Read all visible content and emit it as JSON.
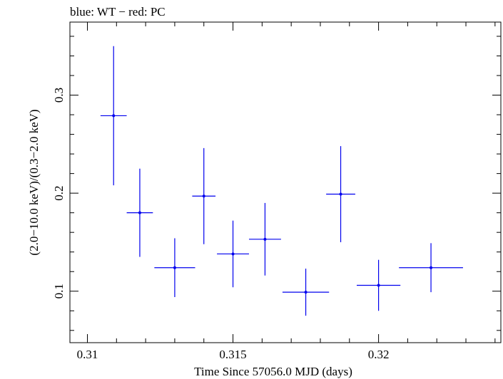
{
  "chart_data": {
    "type": "scatter",
    "title": "blue: WT − red: PC",
    "xlabel": "Time Since 57056.0 MJD (days)",
    "ylabel": "(2.0−10.0 keV)/(0.3−2.0 keV)",
    "xlim": [
      0.3094,
      0.3242
    ],
    "ylim": [
      0.0475,
      0.3745
    ],
    "x_ticks": [
      0.31,
      0.315,
      0.32
    ],
    "x_tick_labels": [
      "0.31",
      "0.315",
      "0.32"
    ],
    "y_ticks": [
      0.1,
      0.2,
      0.3
    ],
    "y_tick_labels": [
      "0.1",
      "0.2",
      "0.3"
    ],
    "grid": false,
    "series": [
      {
        "color": "#0000ee",
        "points": [
          {
            "x": 0.3109,
            "y": 0.279,
            "xerr": 0.00045,
            "yerr_low": 0.071,
            "yerr_high": 0.071
          },
          {
            "x": 0.3118,
            "y": 0.18,
            "xerr": 0.00045,
            "yerr_low": 0.045,
            "yerr_high": 0.045
          },
          {
            "x": 0.313,
            "y": 0.124,
            "xerr": 0.0007,
            "yerr_low": 0.03,
            "yerr_high": 0.03
          },
          {
            "x": 0.314,
            "y": 0.197,
            "xerr": 0.0004,
            "yerr_low": 0.049,
            "yerr_high": 0.049
          },
          {
            "x": 0.315,
            "y": 0.138,
            "xerr": 0.00055,
            "yerr_low": 0.034,
            "yerr_high": 0.034
          },
          {
            "x": 0.3161,
            "y": 0.153,
            "xerr": 0.00055,
            "yerr_low": 0.037,
            "yerr_high": 0.037
          },
          {
            "x": 0.3175,
            "y": 0.099,
            "xerr": 0.0008,
            "yerr_low": 0.024,
            "yerr_high": 0.024
          },
          {
            "x": 0.3187,
            "y": 0.199,
            "xerr": 0.0005,
            "yerr_low": 0.049,
            "yerr_high": 0.049
          },
          {
            "x": 0.32,
            "y": 0.106,
            "xerr": 0.00075,
            "yerr_low": 0.026,
            "yerr_high": 0.026
          },
          {
            "x": 0.3218,
            "y": 0.124,
            "xerr": 0.0011,
            "yerr_low": 0.025,
            "yerr_high": 0.025
          }
        ]
      }
    ]
  }
}
